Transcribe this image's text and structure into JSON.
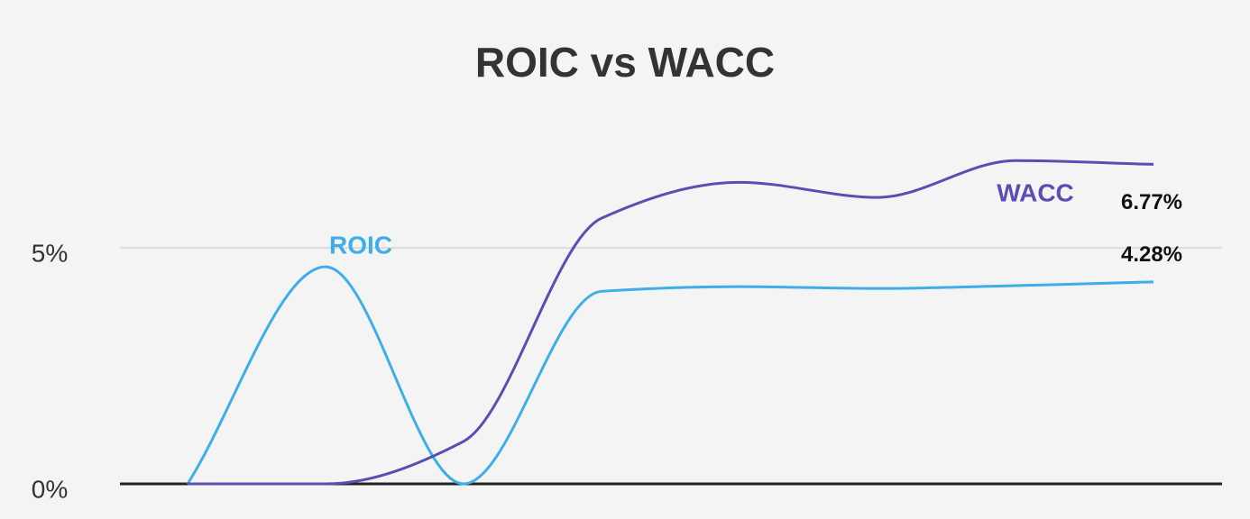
{
  "chart_data": {
    "type": "line",
    "title": "ROIC vs WACC",
    "categories": [
      null,
      null,
      null,
      null,
      null,
      null,
      null,
      null
    ],
    "series": [
      {
        "name": "ROIC",
        "color": "#3eaee8",
        "values": [
          0,
          4.6,
          0,
          4.08,
          4.18,
          4.14,
          4.2,
          4.28
        ],
        "value_labels": [
          null,
          null,
          null,
          null,
          null,
          null,
          null,
          "4.28%"
        ]
      },
      {
        "name": "WACC",
        "color": "#5a4db3",
        "values": [
          0,
          0,
          0.9,
          5.63,
          6.39,
          6.07,
          6.85,
          6.77
        ],
        "value_labels": [
          null,
          null,
          null,
          null,
          null,
          null,
          null,
          "6.77%"
        ]
      }
    ],
    "ylim": [
      0,
      8
    ],
    "yticks": [
      {
        "value": 0,
        "label": "0%"
      },
      {
        "value": 5,
        "label": "5%"
      }
    ],
    "grid": true
  }
}
